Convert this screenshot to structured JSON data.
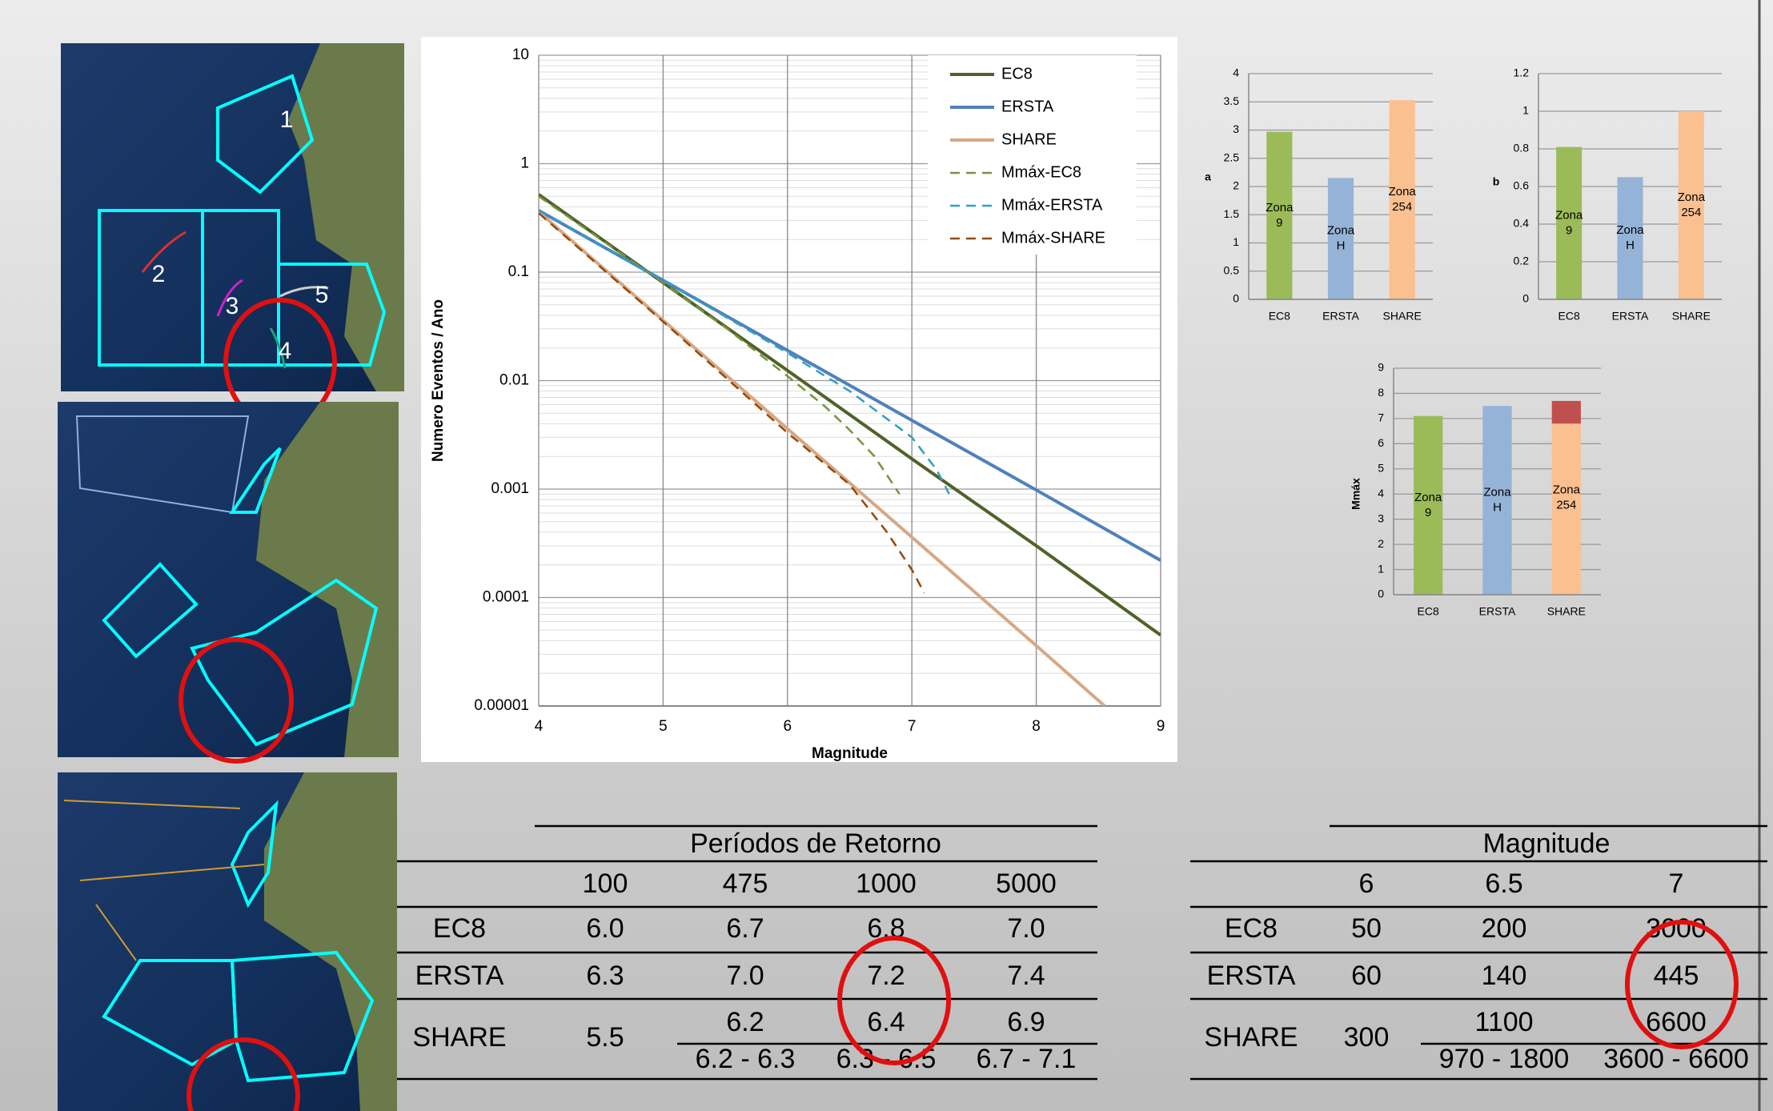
{
  "map_labels": [
    "1",
    "2",
    "3",
    "4",
    "5"
  ],
  "chart_data": [
    {
      "type": "line",
      "y_label": "Numero Eventos / Ano",
      "x_label": "Magnitude",
      "log_y": true,
      "grid": true,
      "legend": "upper right",
      "xlim": [
        4,
        9
      ],
      "xticks": [
        4,
        5,
        6,
        7,
        8,
        9
      ],
      "ylim": [
        1e-05,
        10
      ],
      "yticks": [
        1e-05,
        0.0001,
        0.001,
        0.01,
        0.1,
        1,
        10
      ],
      "series": [
        {
          "name": "EC8",
          "color": "#4f6228",
          "dashed": false,
          "x": [
            4,
            5,
            6,
            7,
            8,
            9
          ],
          "values": [
            0.52,
            0.08,
            0.0124,
            0.0019,
            0.0003,
            4.5e-05
          ]
        },
        {
          "name": "ERSTA",
          "color": "#4f81bd",
          "dashed": false,
          "x": [
            4,
            5,
            6,
            7,
            8,
            9
          ],
          "values": [
            0.37,
            0.084,
            0.019,
            0.0043,
            0.00098,
            0.00022
          ]
        },
        {
          "name": "SHARE",
          "color": "#d6a885",
          "dashed": false,
          "x": [
            4,
            5,
            6,
            7,
            8,
            8.55
          ],
          "values": [
            0.36,
            0.036,
            0.0036,
            0.00036,
            3.6e-05,
            1e-05
          ]
        },
        {
          "name": "Mmáx-EC8",
          "color": "#77933c",
          "dashed": true,
          "x": [
            4,
            5,
            5.5,
            6,
            6.3,
            6.5,
            6.7,
            6.9
          ],
          "values": [
            0.5,
            0.08,
            0.031,
            0.011,
            0.0058,
            0.0035,
            0.002,
            0.0009
          ]
        },
        {
          "name": "Mmáx-ERSTA",
          "color": "#31a0c0",
          "dashed": true,
          "x": [
            4,
            5,
            6,
            6.5,
            7,
            7.2,
            7.3
          ],
          "values": [
            0.37,
            0.084,
            0.018,
            0.008,
            0.003,
            0.0015,
            0.0009
          ]
        },
        {
          "name": "Mmáx-SHARE",
          "color": "#984807",
          "dashed": true,
          "x": [
            4,
            5,
            6,
            6.5,
            6.8,
            7,
            7.1
          ],
          "values": [
            0.35,
            0.035,
            0.0033,
            0.0011,
            0.0004,
            0.00018,
            0.00011
          ]
        }
      ]
    },
    {
      "type": "bar",
      "y_label": "a",
      "categories": [
        "EC8",
        "ERSTA",
        "SHARE"
      ],
      "values": [
        2.97,
        2.15,
        3.53
      ],
      "colors": [
        "#9bbb59",
        "#95b3d7",
        "#fac090"
      ],
      "bar_labels": [
        [
          "Zona",
          "9"
        ],
        [
          "Zona",
          "H"
        ],
        [
          "Zona",
          "254"
        ]
      ],
      "ylim": [
        0,
        4
      ],
      "yticks": [
        0,
        0.5,
        1,
        1.5,
        2,
        2.5,
        3,
        3.5,
        4
      ]
    },
    {
      "type": "bar",
      "y_label": "b",
      "categories": [
        "EC8",
        "ERSTA",
        "SHARE"
      ],
      "values": [
        0.81,
        0.65,
        1.0
      ],
      "colors": [
        "#9bbb59",
        "#95b3d7",
        "#fac090"
      ],
      "bar_labels": [
        [
          "Zona",
          "9"
        ],
        [
          "Zona",
          "H"
        ],
        [
          "Zona",
          "254"
        ]
      ],
      "ylim": [
        0,
        1.2
      ],
      "yticks": [
        0,
        0.2,
        0.4,
        0.6,
        0.8,
        1,
        1.2
      ]
    },
    {
      "type": "stacked_bar",
      "y_label": "Mmáx",
      "categories": [
        "EC8",
        "ERSTA",
        "SHARE"
      ],
      "series": [
        {
          "colors": [
            "#9bbb59",
            "#95b3d7",
            "#fac090"
          ],
          "values": [
            7.1,
            7.5,
            6.8
          ]
        },
        {
          "color": "#c0504d",
          "values": [
            null,
            null,
            0.9
          ]
        }
      ],
      "bar_labels": [
        [
          "Zona",
          "9"
        ],
        [
          "Zona",
          "H"
        ],
        [
          "Zona",
          "254"
        ]
      ],
      "ylim": [
        0,
        9
      ],
      "yticks": [
        0,
        1,
        2,
        3,
        4,
        5,
        6,
        7,
        8,
        9
      ]
    }
  ],
  "tables": [
    {
      "title": "Períodos de Retorno",
      "columns": [
        "100",
        "475",
        "1000",
        "5000"
      ],
      "rows": [
        [
          "EC8",
          "6.0",
          "6.7",
          "6.8",
          "7.0"
        ],
        [
          "ERSTA",
          "6.3",
          "7.0",
          "7.2",
          "7.4"
        ],
        [
          "SHARE",
          "5.5",
          "6.2",
          "6.4",
          "6.9"
        ]
      ],
      "ranges": [
        "6.2 - 6.3",
        "6.3 - 6.5",
        "6.7 - 7.1"
      ]
    },
    {
      "title": "Magnitude",
      "columns": [
        "6",
        "6.5",
        "7"
      ],
      "rows": [
        [
          "EC8",
          "50",
          "200",
          "3000"
        ],
        [
          "ERSTA",
          "60",
          "140",
          "445"
        ],
        [
          "SHARE",
          "300",
          "1100",
          "6600"
        ]
      ],
      "ranges": [
        "970 - 1800",
        "3600 - 6600"
      ]
    }
  ]
}
